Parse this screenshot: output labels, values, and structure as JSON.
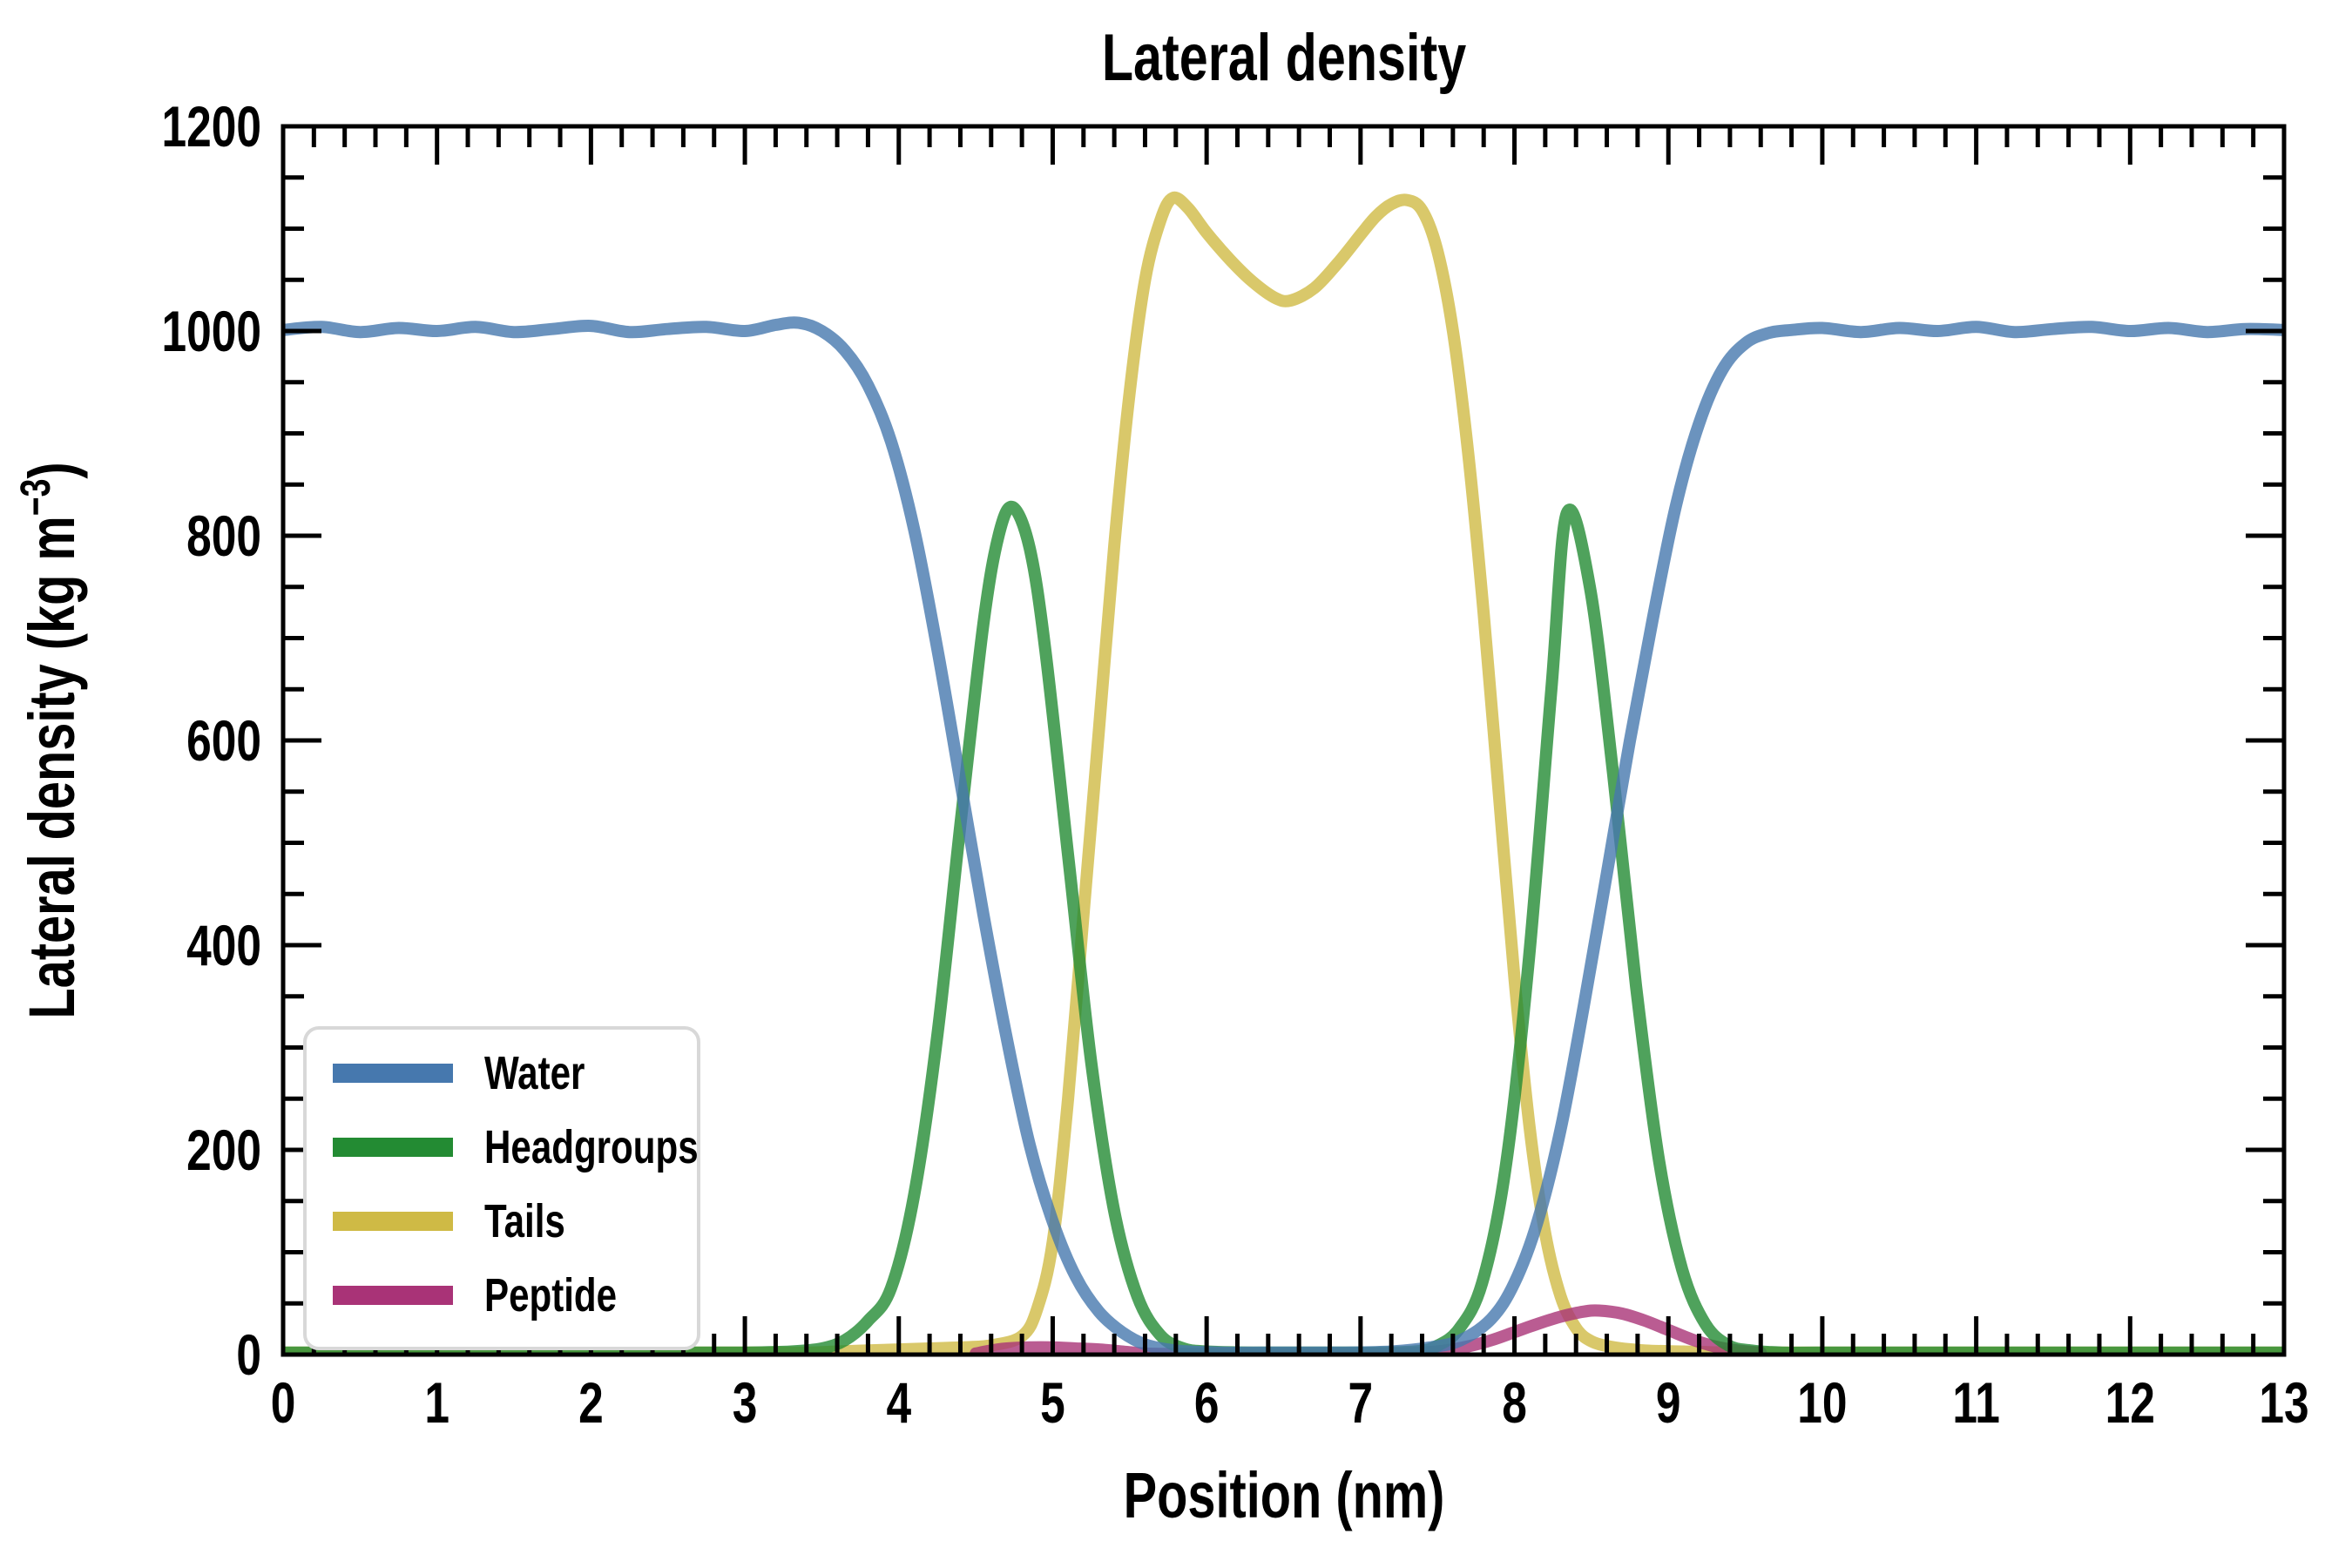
{
  "title": "Lateral density",
  "chart_data": {
    "type": "line",
    "title": "Lateral density",
    "xlabel": "Position (nm)",
    "ylabel": "Lateral density (kg m⁻³)",
    "ylabel_parts": {
      "pre": "Lateral density (kg m",
      "sup": "−3",
      "post": ")"
    },
    "xlim": [
      0,
      13
    ],
    "ylim": [
      0,
      1200
    ],
    "x_major_ticks": [
      0,
      1,
      2,
      3,
      4,
      5,
      6,
      7,
      8,
      9,
      10,
      11,
      12,
      13
    ],
    "x_minor_interval": 0.2,
    "y_major_ticks": [
      0,
      200,
      400,
      600,
      800,
      1000,
      1200
    ],
    "y_minor_interval": 50,
    "grid": false,
    "legend_position": "lower left",
    "line_opacity": 0.8,
    "draw_order": [
      "Tails",
      "Peptide",
      "Headgroups",
      "Water"
    ],
    "series": [
      {
        "name": "Water",
        "color": "#4678ae",
        "points": [
          [
            0,
            1001
          ],
          [
            0.25,
            1004
          ],
          [
            0.5,
            999
          ],
          [
            0.75,
            1003
          ],
          [
            1,
            1000
          ],
          [
            1.25,
            1004
          ],
          [
            1.5,
            999
          ],
          [
            1.75,
            1002
          ],
          [
            2,
            1005
          ],
          [
            2.25,
            999
          ],
          [
            2.5,
            1002
          ],
          [
            2.75,
            1004
          ],
          [
            3,
            1000
          ],
          [
            3.2,
            1006
          ],
          [
            3.35,
            1008
          ],
          [
            3.5,
            1000
          ],
          [
            3.65,
            981
          ],
          [
            3.8,
            947
          ],
          [
            3.95,
            892
          ],
          [
            4.1,
            806
          ],
          [
            4.25,
            690
          ],
          [
            4.4,
            560
          ],
          [
            4.55,
            430
          ],
          [
            4.7,
            310
          ],
          [
            4.85,
            205
          ],
          [
            5,
            130
          ],
          [
            5.15,
            76
          ],
          [
            5.3,
            42
          ],
          [
            5.45,
            22
          ],
          [
            5.6,
            10
          ],
          [
            5.8,
            4
          ],
          [
            6.1,
            2
          ],
          [
            6.5,
            2
          ],
          [
            6.9,
            2
          ],
          [
            7.2,
            3
          ],
          [
            7.45,
            7
          ],
          [
            7.65,
            14
          ],
          [
            7.85,
            35
          ],
          [
            8,
            70
          ],
          [
            8.15,
            130
          ],
          [
            8.3,
            220
          ],
          [
            8.45,
            340
          ],
          [
            8.6,
            470
          ],
          [
            8.75,
            600
          ],
          [
            8.9,
            720
          ],
          [
            9.05,
            830
          ],
          [
            9.2,
            910
          ],
          [
            9.35,
            962
          ],
          [
            9.5,
            988
          ],
          [
            9.65,
            998
          ],
          [
            9.8,
            1001
          ],
          [
            10,
            1003
          ],
          [
            10.25,
            999
          ],
          [
            10.5,
            1003
          ],
          [
            10.75,
            1000
          ],
          [
            11,
            1004
          ],
          [
            11.25,
            999
          ],
          [
            11.5,
            1002
          ],
          [
            11.75,
            1004
          ],
          [
            12,
            1000
          ],
          [
            12.25,
            1003
          ],
          [
            12.5,
            999
          ],
          [
            12.75,
            1002
          ],
          [
            13,
            1001
          ]
        ]
      },
      {
        "name": "Headgroups",
        "color": "#238b33",
        "points": [
          [
            0,
            2
          ],
          [
            0.5,
            2
          ],
          [
            1,
            2
          ],
          [
            1.5,
            2
          ],
          [
            2,
            2
          ],
          [
            2.5,
            2
          ],
          [
            3,
            2
          ],
          [
            3.3,
            3
          ],
          [
            3.5,
            6
          ],
          [
            3.65,
            14
          ],
          [
            3.8,
            33
          ],
          [
            3.95,
            65
          ],
          [
            4.1,
            156
          ],
          [
            4.25,
            311
          ],
          [
            4.4,
            517
          ],
          [
            4.55,
            714
          ],
          [
            4.65,
            801
          ],
          [
            4.74,
            828
          ],
          [
            4.85,
            788
          ],
          [
            4.95,
            691
          ],
          [
            5.1,
            488
          ],
          [
            5.25,
            286
          ],
          [
            5.4,
            140
          ],
          [
            5.55,
            57
          ],
          [
            5.7,
            19
          ],
          [
            5.85,
            6
          ],
          [
            6,
            3
          ],
          [
            6.3,
            2
          ],
          [
            6.7,
            2
          ],
          [
            7.05,
            2
          ],
          [
            7.35,
            3
          ],
          [
            7.49,
            8
          ],
          [
            7.64,
            25
          ],
          [
            7.79,
            70
          ],
          [
            7.94,
            180
          ],
          [
            8.09,
            380
          ],
          [
            8.24,
            650
          ],
          [
            8.34,
            822
          ],
          [
            8.49,
            750
          ],
          [
            8.64,
            569
          ],
          [
            8.79,
            360
          ],
          [
            8.94,
            189
          ],
          [
            9.09,
            83
          ],
          [
            9.24,
            30
          ],
          [
            9.39,
            9
          ],
          [
            9.54,
            4
          ],
          [
            9.74,
            2
          ],
          [
            10.1,
            2
          ],
          [
            10.5,
            2
          ],
          [
            11,
            2
          ],
          [
            11.5,
            2
          ],
          [
            12,
            2
          ],
          [
            12.5,
            2
          ],
          [
            13,
            2
          ]
        ]
      },
      {
        "name": "Tails",
        "color": "#cfba45",
        "points": [
          [
            0,
            2
          ],
          [
            0.6,
            2
          ],
          [
            1.2,
            2
          ],
          [
            1.8,
            2
          ],
          [
            2.4,
            2
          ],
          [
            3,
            2
          ],
          [
            3.4,
            2
          ],
          [
            3.6,
            3
          ],
          [
            3.8,
            4
          ],
          [
            4,
            5
          ],
          [
            4.2,
            6
          ],
          [
            4.4,
            7
          ],
          [
            4.6,
            9
          ],
          [
            4.8,
            18
          ],
          [
            4.9,
            45
          ],
          [
            5,
            110
          ],
          [
            5.1,
            250
          ],
          [
            5.2,
            430
          ],
          [
            5.3,
            610
          ],
          [
            5.4,
            790
          ],
          [
            5.5,
            940
          ],
          [
            5.6,
            1050
          ],
          [
            5.7,
            1108
          ],
          [
            5.78,
            1130
          ],
          [
            5.88,
            1120
          ],
          [
            6,
            1096
          ],
          [
            6.15,
            1070
          ],
          [
            6.3,
            1048
          ],
          [
            6.45,
            1032
          ],
          [
            6.55,
            1030
          ],
          [
            6.7,
            1042
          ],
          [
            6.85,
            1066
          ],
          [
            7,
            1094
          ],
          [
            7.1,
            1112
          ],
          [
            7.2,
            1124
          ],
          [
            7.3,
            1128
          ],
          [
            7.4,
            1118
          ],
          [
            7.5,
            1078
          ],
          [
            7.6,
            1000
          ],
          [
            7.7,
            880
          ],
          [
            7.8,
            724
          ],
          [
            7.9,
            545
          ],
          [
            8,
            368
          ],
          [
            8.1,
            220
          ],
          [
            8.2,
            118
          ],
          [
            8.3,
            57
          ],
          [
            8.4,
            26
          ],
          [
            8.5,
            13
          ],
          [
            8.65,
            7
          ],
          [
            8.85,
            4
          ],
          [
            9.1,
            3
          ],
          [
            9.4,
            2
          ],
          [
            9.8,
            2
          ],
          [
            10.4,
            2
          ],
          [
            11,
            2
          ],
          [
            11.6,
            2
          ],
          [
            12.2,
            2
          ],
          [
            12.8,
            2
          ],
          [
            13,
            2
          ]
        ]
      },
      {
        "name": "Peptide",
        "color": "#a93377",
        "points": [
          [
            4.5,
            1
          ],
          [
            4.6,
            4
          ],
          [
            4.7,
            6
          ],
          [
            4.85,
            7
          ],
          [
            5,
            7
          ],
          [
            5.15,
            6
          ],
          [
            5.3,
            5
          ],
          [
            5.45,
            3
          ],
          [
            5.6,
            1
          ],
          [
            5.8,
            0.5
          ],
          [
            6.1,
            0.5
          ],
          [
            6.5,
            0.5
          ],
          [
            6.9,
            0.5
          ],
          [
            7.2,
            1
          ],
          [
            7.4,
            2
          ],
          [
            7.55,
            4
          ],
          [
            7.7,
            8
          ],
          [
            7.85,
            14
          ],
          [
            8,
            22
          ],
          [
            8.15,
            30
          ],
          [
            8.3,
            37
          ],
          [
            8.45,
            42
          ],
          [
            8.55,
            43
          ],
          [
            8.7,
            40
          ],
          [
            8.85,
            33
          ],
          [
            9,
            24
          ],
          [
            9.15,
            15
          ],
          [
            9.3,
            8
          ],
          [
            9.45,
            4
          ],
          [
            9.6,
            2
          ]
        ]
      }
    ],
    "legend": {
      "entries": [
        {
          "label": "Water",
          "color": "#4678ae"
        },
        {
          "label": "Headgroups",
          "color": "#238b33"
        },
        {
          "label": "Tails",
          "color": "#cfba45"
        },
        {
          "label": "Peptide",
          "color": "#a93377"
        }
      ]
    }
  }
}
